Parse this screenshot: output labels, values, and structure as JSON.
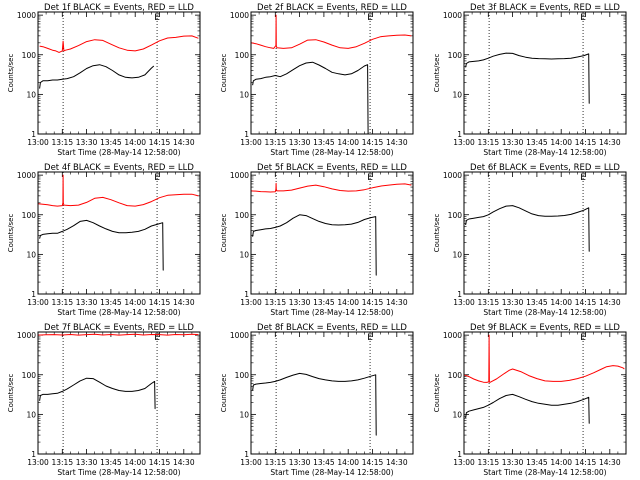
{
  "common": {
    "xlabel": "Start Time (28-May-14 12:58:00)",
    "ylabel": "Counts/sec",
    "x_ticks": [
      "13:00",
      "13:15",
      "13:30",
      "13:45",
      "14:00",
      "14:15",
      "14:30"
    ],
    "x_tick_minutes": [
      0,
      15,
      30,
      45,
      60,
      75,
      90
    ],
    "x_range_minutes": [
      0,
      100
    ],
    "y_ticks": [
      "1",
      "10",
      "100",
      "1000"
    ],
    "y_tick_values": [
      1,
      10,
      100,
      1000
    ],
    "y_range": [
      1,
      1200
    ],
    "y_scale": "log",
    "dotted_vlines_minutes": [
      15.5,
      73.5
    ],
    "marker_label": "E",
    "marker_minutes": 73.5,
    "colors": {
      "events": "#000000",
      "lld": "#ff0000",
      "axes": "#000000",
      "background": "#ffffff"
    }
  },
  "chart_data": [
    {
      "type": "line",
      "title": "Det 1f BLACK = Events, RED = LLD",
      "series": [
        {
          "color": "#ff0000",
          "x": [
            1,
            3,
            6,
            9,
            11,
            13,
            15,
            15.5,
            16,
            17,
            20,
            25,
            30,
            35,
            40,
            45,
            50,
            55,
            60,
            65,
            70,
            75,
            80,
            85,
            90,
            95,
            98,
            99
          ],
          "y": [
            165,
            160,
            145,
            130,
            125,
            115,
            125,
            220,
            125,
            130,
            140,
            170,
            215,
            240,
            230,
            185,
            150,
            130,
            125,
            140,
            175,
            225,
            265,
            275,
            295,
            300,
            270,
            260
          ]
        },
        {
          "color": "#000000",
          "x": [
            1,
            1.5,
            3,
            6,
            9,
            12,
            15,
            18,
            22,
            26,
            30,
            34,
            38,
            42,
            46,
            50,
            54,
            58,
            62,
            66,
            70,
            71.5
          ],
          "y": [
            14,
            20,
            22,
            22,
            23,
            23,
            24,
            25,
            28,
            35,
            45,
            53,
            56,
            50,
            40,
            31,
            27,
            26,
            27,
            31,
            46,
            52
          ]
        }
      ]
    },
    {
      "type": "line",
      "title": "Det 2f BLACK = Events, RED = LLD",
      "series": [
        {
          "color": "#ff0000",
          "x": [
            0,
            3,
            6,
            9,
            12,
            14,
            15.4,
            15.5,
            15.6,
            16,
            20,
            25,
            30,
            35,
            40,
            45,
            50,
            55,
            60,
            65,
            70,
            75,
            80,
            85,
            90,
            95,
            99
          ],
          "y": [
            200,
            190,
            175,
            160,
            150,
            145,
            170,
            1000,
            170,
            150,
            145,
            150,
            185,
            235,
            240,
            210,
            175,
            150,
            145,
            160,
            195,
            245,
            285,
            300,
            310,
            315,
            300
          ]
        },
        {
          "color": "#000000",
          "x": [
            1,
            1.5,
            3,
            6,
            9,
            12,
            15,
            18,
            22,
            26,
            30,
            34,
            38,
            42,
            46,
            50,
            54,
            58,
            62,
            66,
            70,
            72,
            72.3,
            72.5
          ],
          "y": [
            17,
            22,
            24,
            25,
            27,
            28,
            30,
            28,
            33,
            42,
            53,
            62,
            65,
            55,
            45,
            36,
            33,
            31,
            33,
            40,
            52,
            56,
            1,
            1
          ]
        }
      ]
    },
    {
      "type": "line",
      "title": "Det 3f BLACK = Events, RED = LLD",
      "series": [
        {
          "color": "#000000",
          "x": [
            1,
            1.5,
            3,
            6,
            9,
            12,
            15,
            18,
            22,
            26,
            30,
            34,
            38,
            42,
            46,
            50,
            54,
            58,
            62,
            66,
            70,
            74,
            77,
            77.3,
            77.5
          ],
          "y": [
            48,
            60,
            66,
            68,
            70,
            74,
            82,
            92,
            102,
            110,
            108,
            95,
            87,
            82,
            80,
            79,
            78,
            79,
            80,
            82,
            88,
            95,
            105,
            6,
            6
          ]
        }
      ]
    },
    {
      "type": "line",
      "title": "Det 4f BLACK = Events, RED = LLD",
      "series": [
        {
          "color": "#ff0000",
          "x": [
            0,
            3,
            6,
            9,
            12,
            15,
            15.4,
            15.5,
            15.6,
            16,
            20,
            25,
            30,
            35,
            40,
            45,
            50,
            55,
            60,
            65,
            70,
            75,
            80,
            85,
            90,
            95,
            99
          ],
          "y": [
            190,
            185,
            178,
            170,
            165,
            170,
            200,
            1000,
            200,
            175,
            170,
            175,
            205,
            260,
            275,
            240,
            200,
            170,
            165,
            180,
            215,
            270,
            310,
            320,
            330,
            330,
            300
          ]
        },
        {
          "color": "#000000",
          "x": [
            1,
            1.5,
            3,
            6,
            9,
            12,
            15,
            18,
            22,
            26,
            30,
            34,
            38,
            42,
            46,
            50,
            54,
            58,
            62,
            66,
            70,
            74,
            77,
            77.3,
            77.5
          ],
          "y": [
            25,
            30,
            32,
            33,
            34,
            34,
            38,
            43,
            53,
            68,
            72,
            63,
            52,
            44,
            38,
            35,
            35,
            36,
            38,
            43,
            52,
            58,
            63,
            4,
            4
          ]
        }
      ]
    },
    {
      "type": "line",
      "title": "Det 5f BLACK = Events, RED = LLD",
      "series": [
        {
          "color": "#ff0000",
          "x": [
            0,
            3,
            6,
            9,
            12,
            15,
            15.4,
            15.5,
            15.6,
            16,
            20,
            25,
            30,
            35,
            40,
            45,
            50,
            55,
            60,
            65,
            70,
            75,
            80,
            85,
            90,
            95,
            99
          ],
          "y": [
            400,
            395,
            385,
            380,
            375,
            380,
            440,
            620,
            440,
            400,
            400,
            420,
            470,
            530,
            560,
            510,
            450,
            410,
            395,
            400,
            430,
            480,
            530,
            560,
            590,
            600,
            560
          ]
        },
        {
          "color": "#000000",
          "x": [
            1,
            1.5,
            3,
            6,
            9,
            12,
            15,
            18,
            22,
            26,
            30,
            34,
            38,
            42,
            46,
            50,
            54,
            58,
            62,
            66,
            70,
            74,
            77,
            77.3,
            77.5
          ],
          "y": [
            28,
            38,
            40,
            42,
            44,
            45,
            48,
            52,
            63,
            82,
            100,
            95,
            80,
            68,
            60,
            56,
            55,
            56,
            58,
            64,
            76,
            85,
            90,
            3,
            3
          ]
        }
      ]
    },
    {
      "type": "line",
      "title": "Det 6f BLACK = Events, RED = LLD",
      "series": [
        {
          "color": "#000000",
          "x": [
            1,
            1.5,
            3,
            6,
            9,
            12,
            15,
            18,
            22,
            26,
            30,
            34,
            38,
            42,
            46,
            50,
            54,
            58,
            62,
            66,
            70,
            74,
            77,
            77.3,
            77.5
          ],
          "y": [
            55,
            72,
            78,
            82,
            86,
            90,
            100,
            118,
            142,
            165,
            170,
            150,
            125,
            105,
            95,
            92,
            92,
            93,
            96,
            102,
            115,
            130,
            150,
            12,
            12
          ]
        }
      ]
    },
    {
      "type": "line",
      "title": "Det 7f BLACK = Events, RED = LLD",
      "series": [
        {
          "color": "#ff0000",
          "x": [
            0,
            5,
            10,
            15,
            20,
            25,
            30,
            35,
            40,
            45,
            50,
            55,
            60,
            65,
            70,
            75,
            80,
            85,
            90,
            95,
            99
          ],
          "y": [
            1000,
            1020,
            1030,
            1010,
            1040,
            1000,
            1030,
            1050,
            1010,
            1040,
            1000,
            1030,
            1050,
            1010,
            1040,
            1030,
            1000,
            1040,
            1020,
            1050,
            1030
          ]
        },
        {
          "color": "#000000",
          "x": [
            1,
            1.5,
            3,
            6,
            9,
            12,
            15,
            18,
            22,
            26,
            30,
            34,
            38,
            42,
            46,
            50,
            54,
            58,
            62,
            66,
            70,
            72,
            72.3,
            72.5
          ],
          "y": [
            22,
            30,
            32,
            32,
            33,
            34,
            38,
            44,
            55,
            70,
            82,
            80,
            65,
            52,
            45,
            40,
            38,
            38,
            40,
            45,
            60,
            68,
            14,
            14
          ]
        }
      ]
    },
    {
      "type": "line",
      "title": "Det 8f BLACK = Events, RED = LLD",
      "series": [
        {
          "color": "#000000",
          "x": [
            1,
            1.5,
            3,
            6,
            9,
            12,
            15,
            18,
            22,
            26,
            30,
            34,
            38,
            42,
            46,
            50,
            54,
            58,
            62,
            66,
            70,
            74,
            77,
            77.3,
            77.5
          ],
          "y": [
            40,
            55,
            58,
            60,
            62,
            64,
            68,
            74,
            86,
            98,
            108,
            102,
            90,
            80,
            74,
            70,
            68,
            68,
            70,
            74,
            82,
            92,
            100,
            3,
            3
          ]
        }
      ]
    },
    {
      "type": "line",
      "title": "Det 9f BLACK = Events, RED = LLD",
      "series": [
        {
          "color": "#ff0000",
          "x": [
            0,
            3,
            6,
            9,
            12,
            14,
            15.3,
            15.5,
            15.7,
            16,
            20,
            25,
            28,
            30,
            35,
            40,
            45,
            50,
            55,
            60,
            65,
            70,
            75,
            80,
            85,
            88,
            92,
            95,
            98,
            99
          ],
          "y": [
            100,
            90,
            78,
            70,
            65,
            64,
            66,
            1000,
            66,
            64,
            78,
            108,
            130,
            140,
            120,
            95,
            80,
            70,
            68,
            68,
            72,
            80,
            92,
            112,
            140,
            160,
            170,
            165,
            150,
            140
          ]
        },
        {
          "color": "#000000",
          "x": [
            1,
            1.5,
            3,
            6,
            9,
            12,
            15,
            18,
            22,
            26,
            30,
            34,
            38,
            42,
            46,
            50,
            54,
            58,
            62,
            66,
            70,
            74,
            77,
            77.3,
            77.5
          ],
          "y": [
            8,
            11,
            12,
            13,
            14,
            15,
            17,
            20,
            25,
            30,
            32,
            28,
            24,
            21,
            19,
            18,
            17,
            17,
            18,
            19,
            21,
            24,
            27,
            6,
            6
          ]
        }
      ]
    }
  ]
}
